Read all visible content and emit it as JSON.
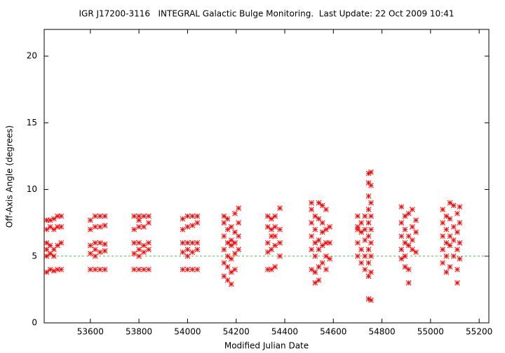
{
  "chart_data": {
    "type": "scatter",
    "title": "IGR J17200-3116   INTEGRAL Galactic Bulge Monitoring.  Last Update: 22 Oct 2009 10:41",
    "x_label": "Modified Julian Date",
    "y_label": "Off-Axis Angle (degrees)",
    "xlim": [
      53410,
      55240
    ],
    "ylim": [
      0,
      22
    ],
    "xticks": [
      53600,
      53800,
      54000,
      54200,
      54400,
      54600,
      54800,
      55000,
      55200
    ],
    "yticks": [
      0,
      5,
      10,
      15,
      20
    ],
    "color": "#ff0000",
    "reference_line": 5,
    "reference_color": "#00c000",
    "grid": false,
    "points": [
      [
        53420,
        3.8
      ],
      [
        53420,
        5
      ],
      [
        53420,
        5.5
      ],
      [
        53420,
        6
      ],
      [
        53420,
        7
      ],
      [
        53420,
        7.7
      ],
      [
        53435,
        4
      ],
      [
        53435,
        5.2
      ],
      [
        53435,
        5.8
      ],
      [
        53435,
        7.2
      ],
      [
        53435,
        7.7
      ],
      [
        53450,
        3.9
      ],
      [
        53450,
        5
      ],
      [
        53450,
        5.5
      ],
      [
        53450,
        7
      ],
      [
        53450,
        7.8
      ],
      [
        53465,
        4
      ],
      [
        53465,
        5.8
      ],
      [
        53465,
        7.2
      ],
      [
        53465,
        8
      ],
      [
        53480,
        4
      ],
      [
        53480,
        6
      ],
      [
        53480,
        7.2
      ],
      [
        53480,
        8
      ],
      [
        53600,
        4
      ],
      [
        53600,
        5.2
      ],
      [
        53600,
        5.8
      ],
      [
        53600,
        7
      ],
      [
        53600,
        7.7
      ],
      [
        53620,
        4
      ],
      [
        53620,
        5
      ],
      [
        53620,
        5.5
      ],
      [
        53620,
        6
      ],
      [
        53620,
        7.2
      ],
      [
        53620,
        8
      ],
      [
        53640,
        4
      ],
      [
        53640,
        5.3
      ],
      [
        53640,
        6
      ],
      [
        53640,
        7.2
      ],
      [
        53640,
        8
      ],
      [
        53660,
        4
      ],
      [
        53660,
        5.4
      ],
      [
        53660,
        5.9
      ],
      [
        53660,
        7.3
      ],
      [
        53660,
        8
      ],
      [
        53780,
        4
      ],
      [
        53780,
        5.2
      ],
      [
        53780,
        6
      ],
      [
        53780,
        7
      ],
      [
        53780,
        8
      ],
      [
        53800,
        4
      ],
      [
        53800,
        5
      ],
      [
        53800,
        5.5
      ],
      [
        53800,
        6
      ],
      [
        53800,
        7.2
      ],
      [
        53800,
        7.7
      ],
      [
        53800,
        8
      ],
      [
        53820,
        4
      ],
      [
        53820,
        5.3
      ],
      [
        53820,
        5.8
      ],
      [
        53820,
        7.2
      ],
      [
        53820,
        8
      ],
      [
        53840,
        4
      ],
      [
        53840,
        5.5
      ],
      [
        53840,
        6
      ],
      [
        53840,
        7.5
      ],
      [
        53840,
        8
      ],
      [
        53980,
        4
      ],
      [
        53980,
        5.3
      ],
      [
        53980,
        6
      ],
      [
        53980,
        7
      ],
      [
        53980,
        7.8
      ],
      [
        54000,
        4
      ],
      [
        54000,
        5
      ],
      [
        54000,
        5.5
      ],
      [
        54000,
        6
      ],
      [
        54000,
        7.2
      ],
      [
        54000,
        8
      ],
      [
        54020,
        4
      ],
      [
        54020,
        5.3
      ],
      [
        54020,
        6
      ],
      [
        54020,
        7.3
      ],
      [
        54020,
        8
      ],
      [
        54040,
        4
      ],
      [
        54040,
        5.5
      ],
      [
        54040,
        6
      ],
      [
        54040,
        7.5
      ],
      [
        54040,
        8
      ],
      [
        54150,
        3.5
      ],
      [
        54150,
        4.5
      ],
      [
        54150,
        5.5
      ],
      [
        54150,
        6.5
      ],
      [
        54150,
        7.5
      ],
      [
        54150,
        8
      ],
      [
        54165,
        3.2
      ],
      [
        54165,
        4.2
      ],
      [
        54165,
        5
      ],
      [
        54165,
        6
      ],
      [
        54165,
        7
      ],
      [
        54165,
        7.8
      ],
      [
        54180,
        2.9
      ],
      [
        54180,
        3.8
      ],
      [
        54180,
        4.8
      ],
      [
        54180,
        5.8
      ],
      [
        54180,
        6.2
      ],
      [
        54180,
        7.2
      ],
      [
        54195,
        4
      ],
      [
        54195,
        5.2
      ],
      [
        54195,
        6
      ],
      [
        54195,
        6.8
      ],
      [
        54195,
        8.2
      ],
      [
        54210,
        5.5
      ],
      [
        54210,
        6.5
      ],
      [
        54210,
        7.5
      ],
      [
        54210,
        8.6
      ],
      [
        54330,
        4
      ],
      [
        54330,
        5.3
      ],
      [
        54330,
        6
      ],
      [
        54330,
        7.2
      ],
      [
        54330,
        8
      ],
      [
        54345,
        4
      ],
      [
        54345,
        5.5
      ],
      [
        54345,
        6.5
      ],
      [
        54345,
        7
      ],
      [
        54345,
        7.8
      ],
      [
        54360,
        4.2
      ],
      [
        54360,
        5.8
      ],
      [
        54360,
        6.5
      ],
      [
        54360,
        7.2
      ],
      [
        54360,
        8
      ],
      [
        54380,
        5
      ],
      [
        54380,
        6
      ],
      [
        54380,
        7
      ],
      [
        54380,
        8.6
      ],
      [
        54510,
        4
      ],
      [
        54510,
        5.5
      ],
      [
        54510,
        6.5
      ],
      [
        54510,
        7.5
      ],
      [
        54510,
        8.5
      ],
      [
        54510,
        9
      ],
      [
        54525,
        3
      ],
      [
        54525,
        3.8
      ],
      [
        54525,
        5
      ],
      [
        54525,
        6
      ],
      [
        54525,
        7
      ],
      [
        54525,
        8
      ],
      [
        54540,
        3.2
      ],
      [
        54540,
        4.2
      ],
      [
        54540,
        5.5
      ],
      [
        54540,
        6.2
      ],
      [
        54540,
        7.8
      ],
      [
        54540,
        9
      ],
      [
        54555,
        4.5
      ],
      [
        54555,
        5.8
      ],
      [
        54555,
        6.8
      ],
      [
        54555,
        7.5
      ],
      [
        54555,
        8.8
      ],
      [
        54570,
        4
      ],
      [
        54570,
        5
      ],
      [
        54570,
        6
      ],
      [
        54570,
        7
      ],
      [
        54570,
        8.5
      ],
      [
        54585,
        4.8
      ],
      [
        54585,
        6
      ],
      [
        54585,
        7.2
      ],
      [
        54700,
        5
      ],
      [
        54700,
        6
      ],
      [
        54700,
        7
      ],
      [
        54700,
        7.2
      ],
      [
        54700,
        8
      ],
      [
        54715,
        4.5
      ],
      [
        54715,
        5.5
      ],
      [
        54715,
        6.8
      ],
      [
        54715,
        7.5
      ],
      [
        54730,
        4
      ],
      [
        54730,
        5
      ],
      [
        54730,
        6.2
      ],
      [
        54730,
        7
      ],
      [
        54730,
        8
      ],
      [
        54745,
        1.8
      ],
      [
        54745,
        3.5
      ],
      [
        54745,
        4.5
      ],
      [
        54745,
        5.5
      ],
      [
        54745,
        6.5
      ],
      [
        54745,
        7.5
      ],
      [
        54745,
        8.5
      ],
      [
        54745,
        9.5
      ],
      [
        54745,
        10.5
      ],
      [
        54745,
        11.2
      ],
      [
        54755,
        1.7
      ],
      [
        54755,
        3.8
      ],
      [
        54755,
        5
      ],
      [
        54755,
        6
      ],
      [
        54755,
        7
      ],
      [
        54755,
        8
      ],
      [
        54755,
        9
      ],
      [
        54755,
        10.3
      ],
      [
        54755,
        11.3
      ],
      [
        54880,
        4.8
      ],
      [
        54880,
        5.5
      ],
      [
        54880,
        6.5
      ],
      [
        54880,
        7.5
      ],
      [
        54880,
        8.7
      ],
      [
        54895,
        4.2
      ],
      [
        54895,
        5
      ],
      [
        54895,
        6
      ],
      [
        54895,
        7
      ],
      [
        54895,
        8
      ],
      [
        54910,
        3
      ],
      [
        54910,
        4
      ],
      [
        54910,
        5.8
      ],
      [
        54910,
        6.5
      ],
      [
        54910,
        8.2
      ],
      [
        54925,
        5.5
      ],
      [
        54925,
        6.2
      ],
      [
        54925,
        7.2
      ],
      [
        54925,
        8.5
      ],
      [
        54940,
        5.3
      ],
      [
        54940,
        6.8
      ],
      [
        54940,
        7.7
      ],
      [
        55050,
        4.5
      ],
      [
        55050,
        5.5
      ],
      [
        55050,
        6.5
      ],
      [
        55050,
        7.5
      ],
      [
        55050,
        8.5
      ],
      [
        55065,
        3.8
      ],
      [
        55065,
        5
      ],
      [
        55065,
        6
      ],
      [
        55065,
        7
      ],
      [
        55065,
        8
      ],
      [
        55080,
        4.2
      ],
      [
        55080,
        5.8
      ],
      [
        55080,
        6.5
      ],
      [
        55080,
        7.8
      ],
      [
        55080,
        9
      ],
      [
        55095,
        5
      ],
      [
        55095,
        6.2
      ],
      [
        55095,
        7.2
      ],
      [
        55095,
        8.8
      ],
      [
        55110,
        3
      ],
      [
        55110,
        4
      ],
      [
        55110,
        5.5
      ],
      [
        55110,
        6.8
      ],
      [
        55110,
        8.2
      ],
      [
        55120,
        4.8
      ],
      [
        55120,
        6
      ],
      [
        55120,
        7.5
      ],
      [
        55120,
        8.7
      ]
    ]
  }
}
